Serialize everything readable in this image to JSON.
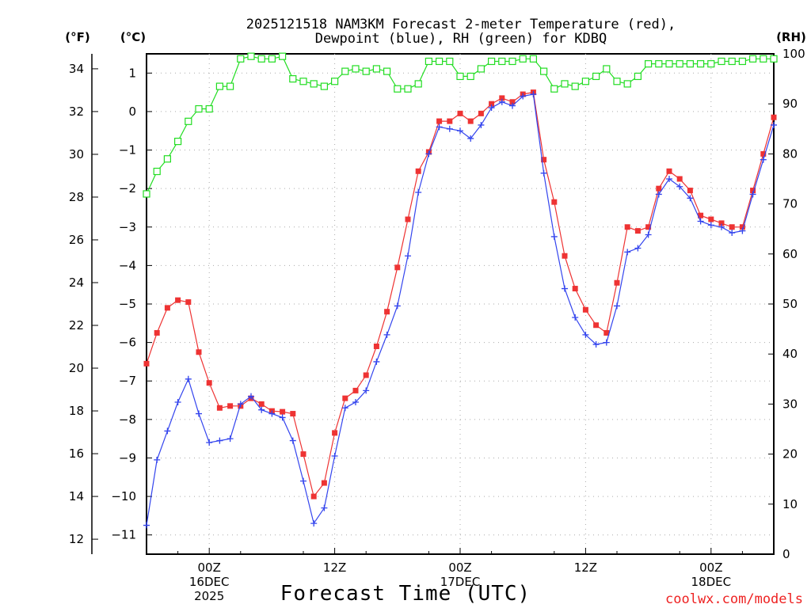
{
  "chart_data": {
    "type": "line",
    "title_line1": "2025121518 NAM3KM Forecast 2-meter Temperature (red),",
    "title_line2": "Dewpoint (blue), RH (green) for KDBQ",
    "unit_labels": {
      "fahrenheit": "(°F)",
      "celsius": "(°C)",
      "rh": "(RH)"
    },
    "xlabel": "Forecast Time (UTC)",
    "credit": "coolwx.com/models",
    "x_unit": "forecast hour",
    "xlim": [
      0,
      60
    ],
    "ylim_celsius": [
      -11.5,
      1.5
    ],
    "ylim_rh": [
      0,
      100
    ],
    "y_ticks_fahrenheit": [
      "12",
      "14",
      "16",
      "18",
      "20",
      "22",
      "24",
      "26",
      "28",
      "30",
      "32",
      "34"
    ],
    "y_ticks_celsius": [
      "−11",
      "−10",
      "−9",
      "−8",
      "−7",
      "−6",
      "−5",
      "−4",
      "−3",
      "−2",
      "−1",
      "0",
      "1"
    ],
    "y_ticks_rh": [
      "0",
      "10",
      "20",
      "30",
      "40",
      "50",
      "60",
      "70",
      "80",
      "90",
      "100"
    ],
    "x_ticks": [
      {
        "hour": 6,
        "lines": [
          "00Z",
          "16DEC",
          "2025"
        ]
      },
      {
        "hour": 18,
        "lines": [
          "12Z"
        ]
      },
      {
        "hour": 30,
        "lines": [
          "00Z",
          "17DEC"
        ]
      },
      {
        "hour": 42,
        "lines": [
          "12Z"
        ]
      },
      {
        "hour": 54,
        "lines": [
          "00Z",
          "18DEC"
        ]
      }
    ],
    "series": [
      {
        "name": "Temperature",
        "unit": "celsius",
        "color": "#ee3333",
        "marker": "filled-square",
        "x": [
          0,
          1,
          2,
          3,
          4,
          5,
          6,
          7,
          8,
          9,
          10,
          11,
          12,
          13,
          14,
          15,
          16,
          17,
          18,
          19,
          20,
          21,
          22,
          23,
          24,
          25,
          26,
          27,
          28,
          29,
          30,
          31,
          32,
          33,
          34,
          35,
          36,
          37,
          38,
          39,
          40,
          41,
          42,
          43,
          44,
          45,
          46,
          47,
          48,
          49,
          50,
          51,
          52,
          53,
          54,
          55,
          56,
          57,
          58,
          59,
          60
        ],
        "values": [
          -6.55,
          -5.75,
          -5.1,
          -4.9,
          -4.95,
          -6.25,
          -7.05,
          -7.7,
          -7.65,
          -7.65,
          -7.45,
          -7.6,
          -7.78,
          -7.8,
          -7.85,
          -8.9,
          -10.0,
          -9.65,
          -8.35,
          -7.45,
          -7.25,
          -6.85,
          -6.1,
          -5.2,
          -4.05,
          -2.8,
          -1.55,
          -1.05,
          -0.25,
          -0.25,
          -0.05,
          -0.25,
          -0.05,
          0.2,
          0.35,
          0.25,
          0.45,
          0.5,
          -1.25,
          -2.35,
          -3.75,
          -4.6,
          -5.15,
          -5.55,
          -5.75,
          -4.45,
          -3.0,
          -3.1,
          -3.0,
          -2.0,
          -1.55,
          -1.75,
          -2.05,
          -2.7,
          -2.8,
          -2.9,
          -3.0,
          -3.0,
          -2.05,
          -1.1,
          -0.15
        ]
      },
      {
        "name": "Dewpoint",
        "unit": "celsius",
        "color": "#3344ee",
        "marker": "plus",
        "x": [
          0,
          1,
          2,
          3,
          4,
          5,
          6,
          7,
          8,
          9,
          10,
          11,
          12,
          13,
          14,
          15,
          16,
          17,
          18,
          19,
          20,
          21,
          22,
          23,
          24,
          25,
          26,
          27,
          28,
          29,
          30,
          31,
          32,
          33,
          34,
          35,
          36,
          37,
          38,
          39,
          40,
          41,
          42,
          43,
          44,
          45,
          46,
          47,
          48,
          49,
          50,
          51,
          52,
          53,
          54,
          55,
          56,
          57,
          58,
          59,
          60
        ],
        "values": [
          -10.75,
          -9.05,
          -8.3,
          -7.55,
          -6.95,
          -7.85,
          -8.6,
          -8.55,
          -8.5,
          -7.6,
          -7.4,
          -7.75,
          -7.85,
          -7.95,
          -8.55,
          -9.6,
          -10.7,
          -10.3,
          -8.95,
          -7.7,
          -7.55,
          -7.25,
          -6.5,
          -5.8,
          -5.05,
          -3.75,
          -2.1,
          -1.1,
          -0.4,
          -0.45,
          -0.5,
          -0.7,
          -0.35,
          0.1,
          0.25,
          0.15,
          0.4,
          0.45,
          -1.6,
          -3.25,
          -4.6,
          -5.35,
          -5.8,
          -6.05,
          -6.0,
          -5.05,
          -3.65,
          -3.55,
          -3.2,
          -2.15,
          -1.75,
          -1.95,
          -2.25,
          -2.85,
          -2.95,
          -3.0,
          -3.15,
          -3.1,
          -2.15,
          -1.25,
          -0.35
        ]
      },
      {
        "name": "RH",
        "unit": "percent",
        "color": "#22dd22",
        "marker": "open-square",
        "x": [
          0,
          1,
          2,
          3,
          4,
          5,
          6,
          7,
          8,
          9,
          10,
          11,
          12,
          13,
          14,
          15,
          16,
          17,
          18,
          19,
          20,
          21,
          22,
          23,
          24,
          25,
          26,
          27,
          28,
          29,
          30,
          31,
          32,
          33,
          34,
          35,
          36,
          37,
          38,
          39,
          40,
          41,
          42,
          43,
          44,
          45,
          46,
          47,
          48,
          49,
          50,
          51,
          52,
          53,
          54,
          55,
          56,
          57,
          58,
          59,
          60
        ],
        "values": [
          72,
          76.5,
          79,
          82.5,
          86.5,
          89,
          89,
          93.5,
          93.5,
          99,
          99.5,
          99,
          99,
          99.5,
          95,
          94.5,
          94,
          93.5,
          94.5,
          96.5,
          97,
          96.5,
          97,
          96.5,
          93,
          93,
          94,
          98.5,
          98.5,
          98.5,
          95.5,
          95.5,
          97,
          98.5,
          98.5,
          98.5,
          99,
          99,
          96.5,
          93,
          94,
          93.5,
          94.5,
          95.5,
          97,
          94.5,
          94,
          95.5,
          98,
          98,
          98,
          98,
          98,
          98,
          98,
          98.5,
          98.5,
          98.5,
          99,
          99,
          99
        ]
      }
    ]
  }
}
